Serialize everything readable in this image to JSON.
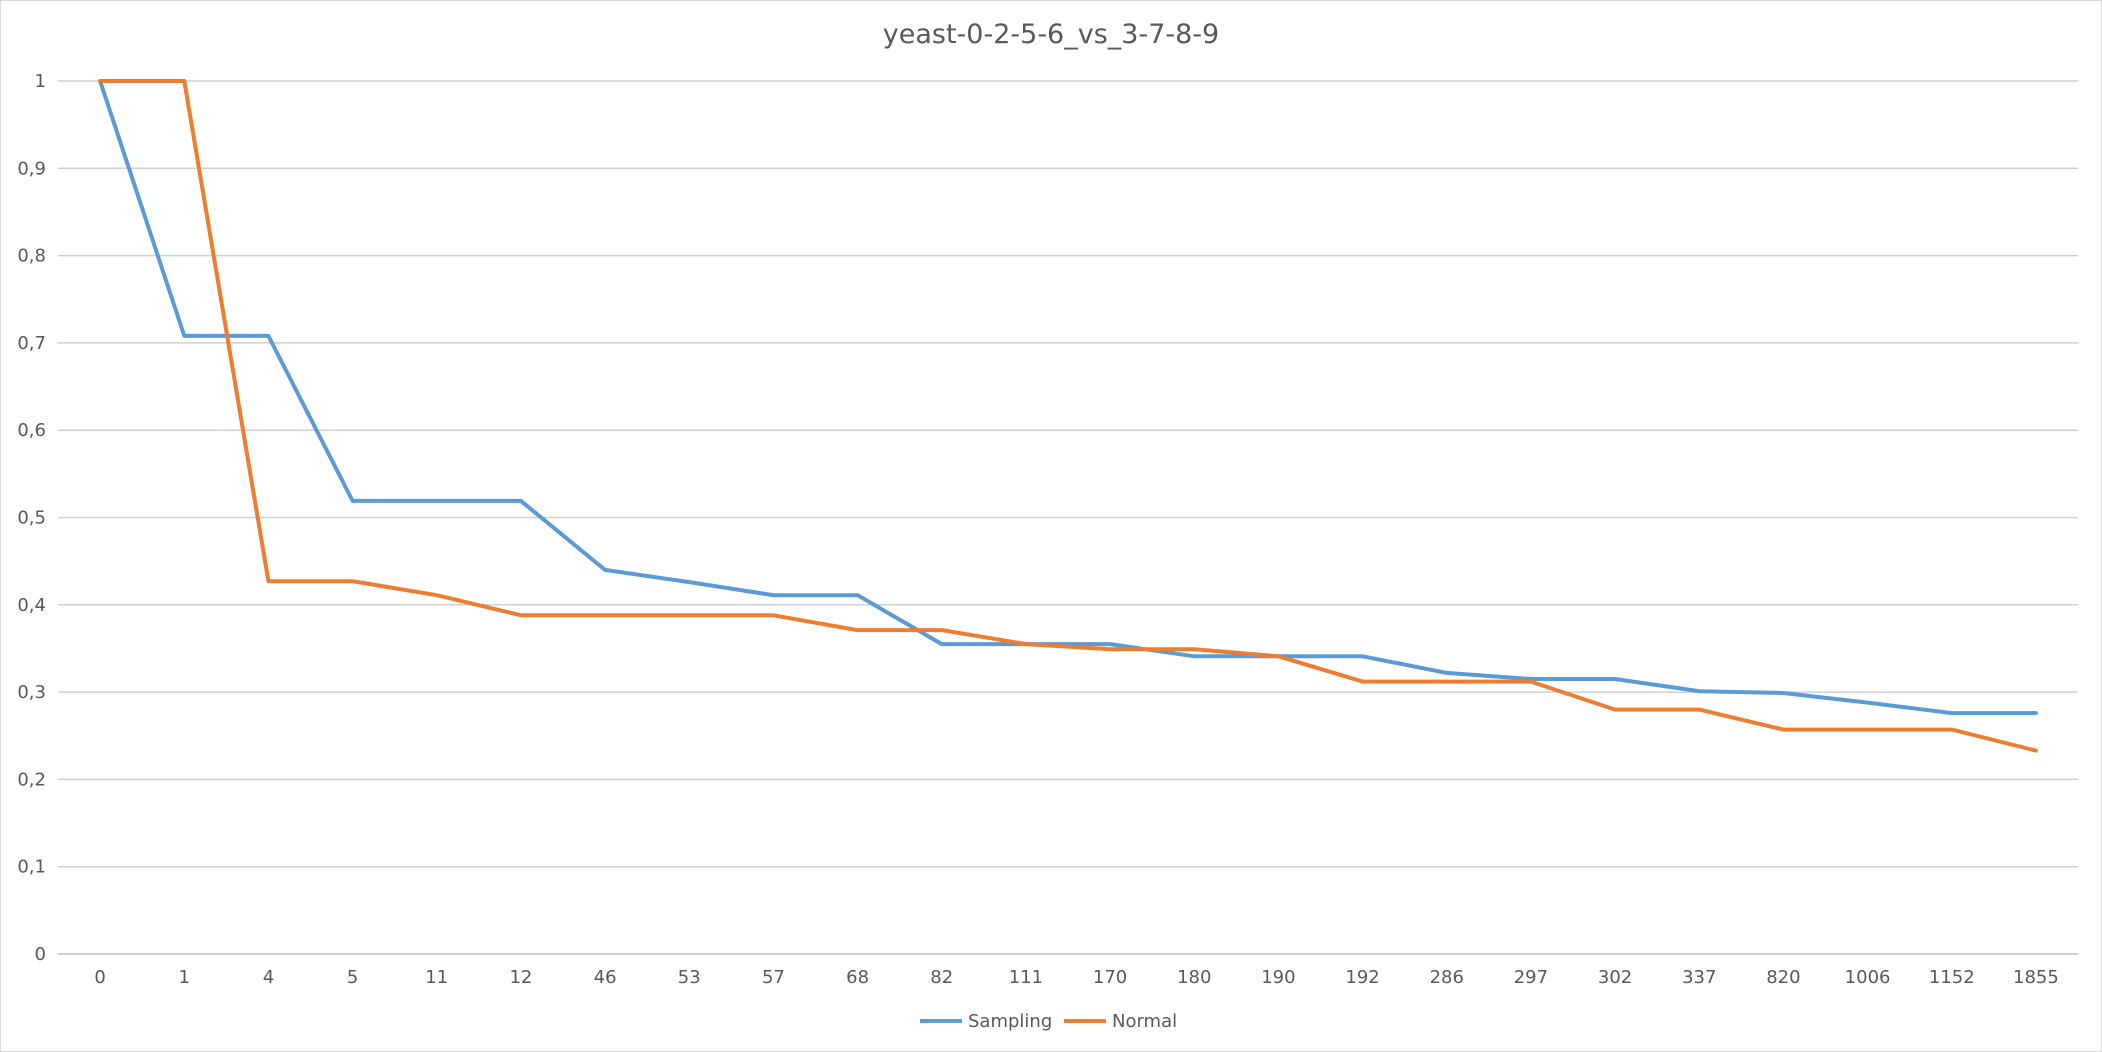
{
  "chart_data": {
    "type": "line",
    "title": "yeast-0-2-5-6_vs_3-7-8-9",
    "xlabel": "",
    "ylabel": "",
    "categories": [
      "0",
      "1",
      "4",
      "5",
      "11",
      "12",
      "46",
      "53",
      "57",
      "68",
      "82",
      "111",
      "170",
      "180",
      "190",
      "192",
      "286",
      "297",
      "302",
      "337",
      "820",
      "1006",
      "1152",
      "1855"
    ],
    "ylim": [
      0,
      1
    ],
    "y_ticks": [
      0,
      0.1,
      0.2,
      0.3,
      0.4,
      0.5,
      0.6,
      0.7,
      0.8,
      0.9,
      1
    ],
    "y_tick_labels": [
      "0",
      "0,1",
      "0,2",
      "0,3",
      "0,4",
      "0,5",
      "0,6",
      "0,7",
      "0,8",
      "0,9",
      "1"
    ],
    "grid": true,
    "legend_position": "bottom",
    "series": [
      {
        "name": "Sampling",
        "color": "#5b9bd5",
        "values": [
          1,
          0.708,
          0.708,
          0.519,
          0.519,
          0.519,
          0.44,
          0.426,
          0.411,
          0.411,
          0.355,
          0.355,
          0.355,
          0.341,
          0.341,
          0.341,
          0.322,
          0.315,
          0.315,
          0.301,
          0.299,
          0.288,
          0.276,
          0.276
        ]
      },
      {
        "name": "Normal",
        "color": "#ed7d31",
        "values": [
          1,
          1,
          0.427,
          0.427,
          0.411,
          0.388,
          0.388,
          0.388,
          0.388,
          0.371,
          0.371,
          0.355,
          0.349,
          0.349,
          0.341,
          0.312,
          0.312,
          0.312,
          0.28,
          0.28,
          0.257,
          0.257,
          0.257,
          0.233
        ]
      }
    ]
  }
}
